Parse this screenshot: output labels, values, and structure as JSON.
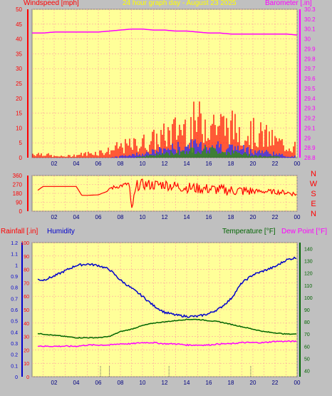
{
  "header": {
    "windspeed_label": "Windspeed [mph]",
    "graph_title": "24 hour graph day - August 23 2025",
    "barometer_label": "Barometer [.in]"
  },
  "colors": {
    "background": "#c0c0c0",
    "plot_background": "#ffff99",
    "grid": "#ff9f9f",
    "gust": "#ff0000",
    "windspeed": "#0000ff",
    "average": "#008000",
    "barometer": "#ff00ff",
    "wind_direction": "#ff0000",
    "rainfall": "#ff0000",
    "humidity": "#0000cc",
    "temperature": "#006400",
    "dew_point": "#ff00ff",
    "title": "#ffff00"
  },
  "chart_data": [
    {
      "type": "bar",
      "title": "24 hour graph day - August 23 2025",
      "xlabel": "",
      "ylabel": "Windspeed [mph]",
      "ylabel_right": "Barometer [.in]",
      "x_ticks": [
        "02",
        "04",
        "06",
        "08",
        "10",
        "12",
        "14",
        "16",
        "18",
        "20",
        "22",
        "00"
      ],
      "ylim": [
        0,
        50
      ],
      "y_ticks": [
        "0",
        "5",
        "10",
        "15",
        "20",
        "25",
        "30",
        "35",
        "40",
        "45",
        "50"
      ],
      "y2lim": [
        28.8,
        30.3
      ],
      "y2_ticks": [
        "28.8",
        "28.9",
        "29",
        "29.1",
        "29.2",
        "29.3",
        "29.4",
        "29.5",
        "29.6",
        "29.7",
        "29.8",
        "29.9",
        "30",
        "30.1",
        "30.2",
        "30.3"
      ],
      "grid": true,
      "series": [
        {
          "kind": "wind_gust_bars",
          "hours": [
            0,
            1,
            2,
            3,
            4,
            5,
            6,
            7,
            8,
            9,
            10,
            11,
            12,
            13,
            14,
            15,
            16,
            17,
            18,
            19,
            20,
            21,
            22,
            23,
            24
          ],
          "values": [
            1.5,
            1.5,
            0.5,
            0.5,
            1,
            1.5,
            2,
            2.5,
            4,
            4.5,
            5.5,
            6.5,
            8,
            10,
            12,
            13,
            14,
            12,
            11,
            10,
            9,
            8,
            6,
            4.5,
            4
          ]
        },
        {
          "kind": "wind_speed_bars",
          "hours": [
            0,
            1,
            2,
            3,
            4,
            5,
            6,
            7,
            8,
            9,
            10,
            11,
            12,
            13,
            14,
            15,
            16,
            17,
            18,
            19,
            20,
            21,
            22,
            23,
            24
          ],
          "values": [
            0,
            0,
            0,
            0,
            0,
            0,
            0,
            0,
            0.5,
            1,
            1.5,
            2,
            3,
            3.5,
            4,
            4.5,
            4.5,
            4,
            3.5,
            3,
            2.5,
            2,
            1.5,
            0.5,
            0.5
          ]
        },
        {
          "kind": "wind_average_bars",
          "hours": [
            0,
            1,
            2,
            3,
            4,
            5,
            6,
            7,
            8,
            9,
            10,
            11,
            12,
            13,
            14,
            15,
            16,
            17,
            18,
            19,
            20,
            21,
            22,
            23,
            24
          ],
          "values": [
            0,
            0,
            0,
            0,
            0,
            0,
            0,
            0,
            0,
            0,
            0.5,
            1,
            1.5,
            2,
            2.5,
            3,
            3,
            2.5,
            2,
            1.5,
            1,
            0.5,
            0.5,
            0,
            0
          ]
        },
        {
          "kind": "barometer_line",
          "axis": "right",
          "hours": [
            0,
            1,
            2,
            3,
            4,
            5,
            6,
            7,
            8,
            9,
            10,
            11,
            12,
            13,
            14,
            15,
            16,
            17,
            18,
            19,
            20,
            21,
            22,
            23,
            24
          ],
          "values": [
            30.06,
            30.06,
            30.07,
            30.07,
            30.07,
            30.07,
            30.07,
            30.08,
            30.09,
            30.1,
            30.1,
            30.09,
            30.09,
            30.08,
            30.08,
            30.07,
            30.06,
            30.06,
            30.05,
            30.05,
            30.05,
            30.05,
            30.05,
            30.05,
            30.04
          ]
        }
      ]
    },
    {
      "type": "line",
      "title": "",
      "ylim": [
        0,
        360
      ],
      "y_ticks": [
        "0",
        "90",
        "180",
        "270",
        "360"
      ],
      "direction_labels": [
        "N",
        "W",
        "S",
        "E",
        "N"
      ],
      "x_ticks": [
        "02",
        "04",
        "06",
        "08",
        "10",
        "12",
        "14",
        "16",
        "18",
        "20",
        "22",
        "00"
      ],
      "grid": true,
      "series": [
        {
          "kind": "wind_direction",
          "hours": [
            0,
            0.5,
            1,
            2,
            3,
            4,
            4.5,
            5,
            6,
            6.8,
            7,
            8,
            8.8,
            9,
            9.5,
            10,
            11,
            12,
            13,
            14,
            15,
            16,
            17,
            18,
            19,
            20,
            21,
            22,
            23,
            24
          ],
          "values": [
            235,
            210,
            250,
            250,
            250,
            250,
            160,
            160,
            165,
            200,
            230,
            255,
            280,
            10,
            260,
            270,
            265,
            270,
            250,
            240,
            230,
            225,
            215,
            210,
            205,
            200,
            200,
            195,
            190,
            170
          ]
        }
      ]
    },
    {
      "type": "line",
      "title": "",
      "ylabel_left_outer": "Rainfall [.in]",
      "ylabel_left_inner": "Humidity",
      "ylabel_right_outer": "Temperature [°F]",
      "ylabel_right_inner": "Dew Point [°F]",
      "rain_ylim": [
        0,
        1.2
      ],
      "rain_ticks": [
        "0",
        "0.1",
        "0.2",
        "0.3",
        "0.4",
        "0.5",
        "0.6",
        "0.7",
        "0.8",
        "0.9",
        "1",
        "1.1",
        "1.2"
      ],
      "humidity_ylim": [
        0,
        100
      ],
      "humidity_ticks": [
        "0",
        "10",
        "20",
        "30",
        "40",
        "50",
        "60",
        "70",
        "80",
        "90",
        "100"
      ],
      "temp_ylim": [
        35,
        145
      ],
      "temp_ticks": [
        "40",
        "50",
        "60",
        "70",
        "80",
        "90",
        "100",
        "110",
        "120",
        "130",
        "140"
      ],
      "x_ticks": [
        "02",
        "04",
        "06",
        "08",
        "10",
        "12",
        "14",
        "16",
        "18",
        "20",
        "22",
        "00"
      ],
      "grid": true,
      "series": [
        {
          "name": "Humidity",
          "axis": "humidity",
          "hours": [
            0,
            1,
            2,
            3,
            4,
            5,
            6,
            7,
            8,
            9,
            10,
            11,
            12,
            13,
            14,
            15,
            16,
            17,
            18,
            19,
            20,
            21,
            22,
            23,
            24
          ],
          "values": [
            73,
            72,
            75,
            79,
            83,
            84,
            83,
            80,
            72,
            66,
            60,
            53,
            48,
            46,
            45,
            45,
            47,
            51,
            58,
            70,
            76,
            79,
            82,
            87,
            89
          ]
        },
        {
          "name": "Temperature [°F]",
          "axis": "temp",
          "hours": [
            0,
            1,
            2,
            3,
            4,
            5,
            6,
            7,
            8,
            9,
            10,
            11,
            12,
            13,
            14,
            15,
            16,
            17,
            18,
            19,
            20,
            21,
            22,
            23,
            24
          ],
          "values": [
            71,
            70,
            69,
            68,
            67,
            67,
            67,
            68,
            72,
            74,
            77,
            79,
            80,
            81,
            82,
            82,
            81,
            80,
            78,
            76,
            74,
            72,
            71,
            70,
            70
          ]
        },
        {
          "name": "Dew Point [°F]",
          "axis": "temp",
          "hours": [
            0,
            1,
            2,
            3,
            4,
            5,
            6,
            7,
            8,
            9,
            10,
            11,
            12,
            13,
            14,
            15,
            16,
            17,
            18,
            19,
            20,
            21,
            22,
            23,
            24
          ],
          "values": [
            61,
            60,
            60,
            60,
            60,
            61,
            61,
            61,
            62,
            62,
            63,
            63,
            62,
            62,
            61,
            61,
            61,
            62,
            62,
            63,
            63,
            63,
            64,
            64,
            64
          ]
        },
        {
          "name": "Rainfall [.in]",
          "axis": "rain",
          "hours": [],
          "values": []
        }
      ],
      "markers_hours": [
        6.2,
        7,
        12.4,
        19.8
      ]
    }
  ]
}
